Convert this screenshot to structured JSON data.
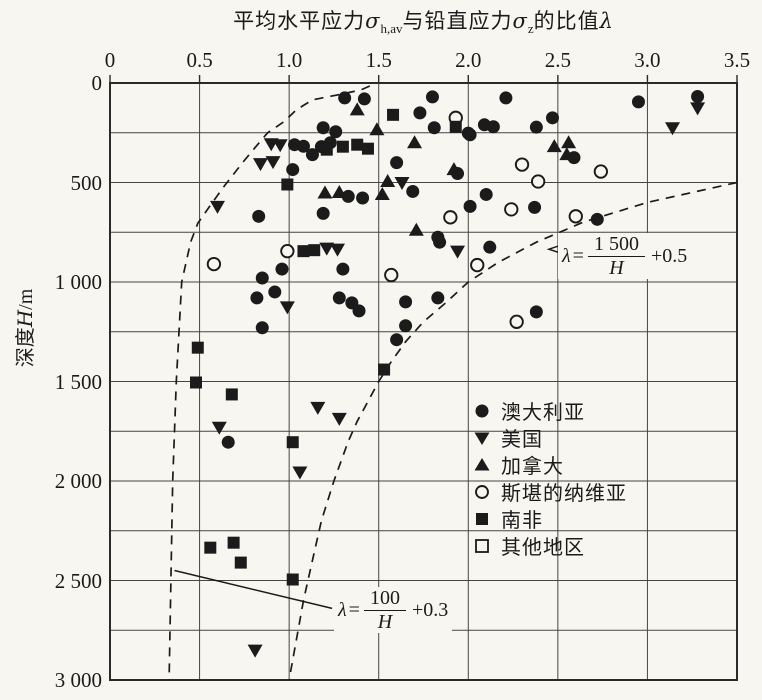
{
  "title": {
    "part1": "平均水平应力",
    "sigma1": "σ",
    "sub1": "h,av",
    "part2": "与铅直应力",
    "sigma2": "σ",
    "sub2": "z",
    "part3": "的比值",
    "part4": "λ"
  },
  "axes": {
    "x_tick_labels": [
      "0",
      "0.5",
      "1.0",
      "1.5",
      "2.0",
      "2.5",
      "3.0",
      "3.5"
    ],
    "y_tick_labels": [
      "0",
      "500",
      "1 000",
      "1 500",
      "2 000",
      "2 500",
      "3 000"
    ],
    "y_axis_label_cjk": "深度",
    "y_axis_label_var": "H",
    "y_axis_label_unit": "/m"
  },
  "legend": {
    "items": [
      {
        "marker": "circle-filled",
        "label": "澳大利亚"
      },
      {
        "marker": "triangle-down-filled",
        "label": "美国"
      },
      {
        "marker": "triangle-up-filled",
        "label": "加拿大"
      },
      {
        "marker": "circle-open",
        "label": "斯堪的纳维亚"
      },
      {
        "marker": "square-filled",
        "label": "南非"
      },
      {
        "marker": "square-open",
        "label": "其他地区"
      }
    ]
  },
  "annotations": {
    "formula1": {
      "lhs": "λ",
      "eq": "=",
      "numerator": "1 500",
      "denominator": "H",
      "suffix": "+0.5"
    },
    "formula2": {
      "lhs": "λ",
      "eq": "=",
      "numerator": "100",
      "denominator": "H",
      "suffix": "+0.3"
    }
  },
  "colors": {
    "ink": "#1b1b1b",
    "grid": "#454545",
    "border": "#2a2a2a",
    "bg": "#f7f6f1"
  },
  "chart_data": {
    "type": "scatter",
    "title": "平均水平应力σh,av与铅直应力σz的比值λ",
    "xlabel": "平均水平应力σh,av与铅直应力σz的比值λ (top axis)",
    "ylabel": "深度H/m",
    "xlim": [
      0,
      3.5
    ],
    "ylim": [
      0,
      3000
    ],
    "y_inverted": true,
    "grid": {
      "x_step": 0.5,
      "y_step": 250
    },
    "legend_position": "center-right",
    "series": [
      {
        "name": "澳大利亚",
        "marker": "circle-filled",
        "points": [
          [
            1.03,
            310
          ],
          [
            1.08,
            318
          ],
          [
            1.19,
            225
          ],
          [
            1.13,
            360
          ],
          [
            1.18,
            320
          ],
          [
            1.02,
            435
          ],
          [
            0.83,
            670
          ],
          [
            1.19,
            655
          ],
          [
            1.31,
            75
          ],
          [
            1.42,
            80
          ],
          [
            1.8,
            70
          ],
          [
            2.21,
            75
          ],
          [
            1.73,
            150
          ],
          [
            1.81,
            225
          ],
          [
            1.26,
            245
          ],
          [
            2.0,
            252
          ],
          [
            2.09,
            210
          ],
          [
            2.14,
            220
          ],
          [
            1.23,
            300
          ],
          [
            1.6,
            400
          ],
          [
            1.94,
            455
          ],
          [
            1.33,
            570
          ],
          [
            1.41,
            578
          ],
          [
            1.69,
            545
          ],
          [
            2.1,
            560
          ],
          [
            2.01,
            620
          ],
          [
            1.83,
            775
          ],
          [
            2.01,
            260
          ],
          [
            2.38,
            222
          ],
          [
            2.95,
            95
          ],
          [
            3.28,
            68
          ],
          [
            2.47,
            175
          ],
          [
            2.59,
            375
          ],
          [
            2.72,
            685
          ],
          [
            2.37,
            625
          ],
          [
            0.85,
            980
          ],
          [
            0.96,
            935
          ],
          [
            0.92,
            1050
          ],
          [
            0.82,
            1080
          ],
          [
            0.85,
            1230
          ],
          [
            1.84,
            800
          ],
          [
            2.12,
            825
          ],
          [
            1.3,
            935
          ],
          [
            1.28,
            1080
          ],
          [
            1.35,
            1105
          ],
          [
            1.39,
            1145
          ],
          [
            1.65,
            1100
          ],
          [
            1.83,
            1080
          ],
          [
            1.65,
            1220
          ],
          [
            1.6,
            1290
          ],
          [
            2.38,
            1150
          ],
          [
            0.66,
            1805
          ]
        ]
      },
      {
        "name": "美国",
        "marker": "triangle-down-filled",
        "points": [
          [
            0.9,
            305
          ],
          [
            0.95,
            310
          ],
          [
            0.84,
            405
          ],
          [
            0.91,
            395
          ],
          [
            0.6,
            620
          ],
          [
            1.63,
            500
          ],
          [
            3.28,
            125
          ],
          [
            3.14,
            225
          ],
          [
            0.99,
            1125
          ],
          [
            1.21,
            830
          ],
          [
            1.27,
            835
          ],
          [
            1.94,
            845
          ],
          [
            1.16,
            1630
          ],
          [
            0.61,
            1730
          ],
          [
            1.06,
            1955
          ],
          [
            1.28,
            1685
          ],
          [
            0.81,
            2850
          ]
        ]
      },
      {
        "name": "加拿大",
        "marker": "triangle-up-filled",
        "points": [
          [
            1.38,
            135
          ],
          [
            1.49,
            235
          ],
          [
            1.7,
            300
          ],
          [
            1.92,
            435
          ],
          [
            1.55,
            495
          ],
          [
            1.28,
            550
          ],
          [
            1.2,
            553
          ],
          [
            1.52,
            560
          ],
          [
            1.71,
            740
          ],
          [
            2.48,
            320
          ],
          [
            2.56,
            300
          ],
          [
            2.55,
            360
          ]
        ]
      },
      {
        "name": "斯堪的纳维亚",
        "marker": "circle-open",
        "points": [
          [
            1.93,
            175
          ],
          [
            2.3,
            410
          ],
          [
            2.24,
            635
          ],
          [
            1.9,
            675
          ],
          [
            2.74,
            445
          ],
          [
            2.39,
            495
          ],
          [
            2.6,
            670
          ],
          [
            0.58,
            910
          ],
          [
            0.99,
            845
          ],
          [
            2.05,
            915
          ],
          [
            1.57,
            965
          ],
          [
            2.27,
            1200
          ]
        ]
      },
      {
        "name": "南非",
        "marker": "square-filled",
        "points": [
          [
            0.99,
            510
          ],
          [
            1.58,
            160
          ],
          [
            1.93,
            220
          ],
          [
            1.21,
            335
          ],
          [
            1.3,
            320
          ],
          [
            1.38,
            310
          ],
          [
            1.44,
            330
          ],
          [
            1.08,
            845
          ],
          [
            1.14,
            840
          ],
          [
            0.49,
            1330
          ],
          [
            0.48,
            1505
          ],
          [
            0.68,
            1565
          ],
          [
            1.53,
            1440
          ],
          [
            1.02,
            1805
          ],
          [
            0.56,
            2335
          ],
          [
            0.69,
            2310
          ],
          [
            0.73,
            2410
          ],
          [
            1.02,
            2495
          ]
        ]
      },
      {
        "name": "其他地区",
        "marker": "square-open",
        "points": []
      }
    ],
    "curves": [
      {
        "label": "λ = 1500/H + 0.5",
        "style": "dashed",
        "points": [
          [
            3.5,
            500
          ],
          [
            3.0,
            600
          ],
          [
            2.64,
            700
          ],
          [
            2.38,
            800
          ],
          [
            2.17,
            900
          ],
          [
            2.0,
            1000
          ],
          [
            1.88,
            1100
          ],
          [
            1.75,
            1200
          ],
          [
            1.65,
            1300
          ],
          [
            1.57,
            1400
          ],
          [
            1.5,
            1500
          ],
          [
            1.44,
            1600
          ],
          [
            1.38,
            1700
          ],
          [
            1.33,
            1800
          ],
          [
            1.29,
            1900
          ],
          [
            1.25,
            2000
          ],
          [
            1.18,
            2200
          ],
          [
            1.13,
            2400
          ],
          [
            1.08,
            2600
          ],
          [
            1.04,
            2800
          ],
          [
            1.0,
            3000
          ]
        ]
      },
      {
        "label": "λ = 100/H + 0.3",
        "style": "dashed",
        "points": [
          [
            1.45,
            15
          ],
          [
            1.4,
            35
          ],
          [
            1.27,
            60
          ],
          [
            1.13,
            85
          ],
          [
            1.04,
            135
          ],
          [
            0.97,
            195
          ],
          [
            0.88,
            250
          ],
          [
            0.8,
            335
          ],
          [
            0.74,
            400
          ],
          [
            0.64,
            515
          ],
          [
            0.56,
            615
          ],
          [
            0.49,
            705
          ],
          [
            0.45,
            800
          ],
          [
            0.4,
            1000
          ],
          [
            0.37,
            1500
          ],
          [
            0.35,
            2000
          ],
          [
            0.34,
            2500
          ],
          [
            0.33,
            3000
          ]
        ]
      }
    ],
    "leader_lines": [
      {
        "type": "solid",
        "for": "formula2",
        "points": [
          [
            0.36,
            2450
          ],
          [
            1.24,
            2640
          ]
        ]
      },
      {
        "type": "arrow",
        "for": "formula1",
        "points": [
          [
            2.6,
            790
          ],
          [
            2.45,
            835
          ],
          [
            2.6,
            880
          ]
        ]
      }
    ]
  }
}
